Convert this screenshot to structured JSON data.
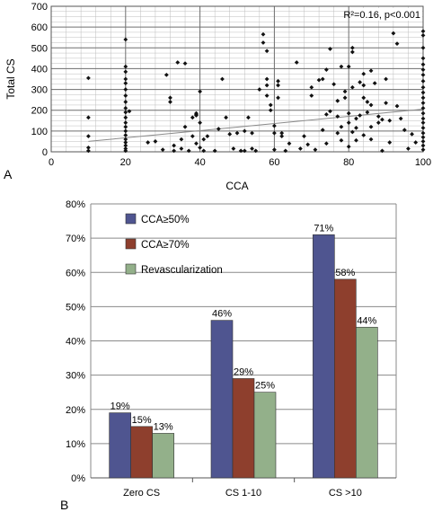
{
  "chart_data": [
    {
      "type": "scatter",
      "panel_label": "A",
      "xlabel": "CCA",
      "ylabel": "Total CS",
      "xlim": [
        0,
        100
      ],
      "ylim": [
        0,
        700
      ],
      "xticks": [
        0,
        20,
        40,
        60,
        80,
        100
      ],
      "yticks": [
        0,
        100,
        200,
        300,
        400,
        500,
        600,
        700
      ],
      "grid": true,
      "annotation": "R²=0.16, p<0.001",
      "trendline": {
        "x": [
          10,
          100
        ],
        "y": [
          50,
          205
        ]
      },
      "points": [
        [
          10,
          355
        ],
        [
          10,
          165
        ],
        [
          10,
          75
        ],
        [
          10,
          20
        ],
        [
          10,
          5
        ],
        [
          20,
          540
        ],
        [
          20,
          410
        ],
        [
          20,
          385
        ],
        [
          20,
          350
        ],
        [
          20,
          330
        ],
        [
          20,
          300
        ],
        [
          20,
          270
        ],
        [
          20,
          240
        ],
        [
          20,
          210
        ],
        [
          20,
          190
        ],
        [
          20,
          165
        ],
        [
          20,
          140
        ],
        [
          20,
          120
        ],
        [
          20,
          100
        ],
        [
          20,
          80
        ],
        [
          20,
          60
        ],
        [
          20,
          45
        ],
        [
          20,
          30
        ],
        [
          20,
          15
        ],
        [
          20,
          5
        ],
        [
          21,
          195
        ],
        [
          26,
          45
        ],
        [
          28,
          50
        ],
        [
          30,
          10
        ],
        [
          31,
          370
        ],
        [
          32,
          260
        ],
        [
          32,
          240
        ],
        [
          33,
          5
        ],
        [
          33,
          30
        ],
        [
          34,
          430
        ],
        [
          35,
          60
        ],
        [
          35,
          15
        ],
        [
          36,
          425
        ],
        [
          36,
          120
        ],
        [
          37,
          5
        ],
        [
          38,
          75
        ],
        [
          38,
          165
        ],
        [
          39,
          175
        ],
        [
          39,
          180
        ],
        [
          39,
          40
        ],
        [
          39,
          185
        ],
        [
          40,
          290
        ],
        [
          40,
          140
        ],
        [
          40,
          20
        ],
        [
          41,
          60
        ],
        [
          41,
          5
        ],
        [
          42,
          75
        ],
        [
          44,
          5
        ],
        [
          45,
          110
        ],
        [
          46,
          350
        ],
        [
          47,
          165
        ],
        [
          48,
          85
        ],
        [
          49,
          15
        ],
        [
          50,
          90
        ],
        [
          51,
          5
        ],
        [
          52,
          5
        ],
        [
          52,
          100
        ],
        [
          53,
          165
        ],
        [
          54,
          15
        ],
        [
          54,
          90
        ],
        [
          55,
          5
        ],
        [
          56,
          300
        ],
        [
          57,
          525
        ],
        [
          57,
          565
        ],
        [
          58,
          485
        ],
        [
          58,
          350
        ],
        [
          58,
          320
        ],
        [
          58,
          270
        ],
        [
          59,
          225
        ],
        [
          59,
          200
        ],
        [
          60,
          10
        ],
        [
          60,
          125
        ],
        [
          60,
          90
        ],
        [
          61,
          260
        ],
        [
          61,
          320
        ],
        [
          61,
          340
        ],
        [
          62,
          90
        ],
        [
          62,
          75
        ],
        [
          63,
          5
        ],
        [
          64,
          40
        ],
        [
          66,
          430
        ],
        [
          67,
          15
        ],
        [
          68,
          75
        ],
        [
          69,
          35
        ],
        [
          70,
          310
        ],
        [
          70,
          270
        ],
        [
          71,
          10
        ],
        [
          72,
          345
        ],
        [
          73,
          105
        ],
        [
          73,
          350
        ],
        [
          74,
          180
        ],
        [
          74,
          395
        ],
        [
          74,
          40
        ],
        [
          75,
          495
        ],
        [
          75,
          195
        ],
        [
          76,
          325
        ],
        [
          77,
          90
        ],
        [
          77,
          245
        ],
        [
          77,
          170
        ],
        [
          78,
          120
        ],
        [
          78,
          410
        ],
        [
          78,
          55
        ],
        [
          79,
          290
        ],
        [
          79,
          260
        ],
        [
          80,
          185
        ],
        [
          80,
          140
        ],
        [
          80,
          410
        ],
        [
          80,
          25
        ],
        [
          81,
          500
        ],
        [
          81,
          480
        ],
        [
          81,
          310
        ],
        [
          81,
          95
        ],
        [
          82,
          160
        ],
        [
          82,
          115
        ],
        [
          82,
          55
        ],
        [
          83,
          335
        ],
        [
          83,
          175
        ],
        [
          84,
          320
        ],
        [
          84,
          375
        ],
        [
          84,
          260
        ],
        [
          84,
          80
        ],
        [
          85,
          240
        ],
        [
          85,
          190
        ],
        [
          86,
          390
        ],
        [
          86,
          225
        ],
        [
          86,
          120
        ],
        [
          86,
          60
        ],
        [
          87,
          330
        ],
        [
          88,
          170
        ],
        [
          88,
          140
        ],
        [
          89,
          5
        ],
        [
          89,
          155
        ],
        [
          90,
          350
        ],
        [
          90,
          235
        ],
        [
          91,
          150
        ],
        [
          91,
          45
        ],
        [
          92,
          570
        ],
        [
          93,
          520
        ],
        [
          93,
          220
        ],
        [
          94,
          160
        ],
        [
          95,
          105
        ],
        [
          96,
          15
        ],
        [
          97,
          85
        ],
        [
          98,
          45
        ],
        [
          100,
          580
        ],
        [
          100,
          560
        ],
        [
          100,
          500
        ],
        [
          100,
          450
        ],
        [
          100,
          420
        ],
        [
          100,
          395
        ],
        [
          100,
          370
        ],
        [
          100,
          340
        ],
        [
          100,
          310
        ],
        [
          100,
          285
        ],
        [
          100,
          260
        ],
        [
          100,
          235
        ],
        [
          100,
          210
        ],
        [
          100,
          185
        ],
        [
          100,
          160
        ],
        [
          100,
          140
        ],
        [
          100,
          115
        ],
        [
          100,
          90
        ],
        [
          100,
          70
        ],
        [
          100,
          50
        ],
        [
          100,
          30
        ],
        [
          100,
          10
        ]
      ]
    },
    {
      "type": "bar",
      "panel_label": "B",
      "categories": [
        "Zero CS",
        "CS 1-10",
        "CS >10"
      ],
      "ylim": [
        0,
        80
      ],
      "yticks": [
        0,
        10,
        20,
        30,
        40,
        50,
        60,
        70,
        80
      ],
      "ytick_suffix": "%",
      "grid": true,
      "legend_position": "top-left",
      "series": [
        {
          "name": "CCA≥50%",
          "color": "#4f5590",
          "values": [
            19,
            46,
            71
          ],
          "labels": [
            "19%",
            "46%",
            "71%"
          ]
        },
        {
          "name": "CCA≥70%",
          "color": "#8e3f2d",
          "values": [
            15,
            29,
            58
          ],
          "labels": [
            "15%",
            "29%",
            "58%"
          ]
        },
        {
          "name": "Revascularization",
          "color": "#93b08a",
          "values": [
            13,
            25,
            44
          ],
          "labels": [
            "13%",
            "25%",
            "44%"
          ]
        }
      ]
    }
  ]
}
